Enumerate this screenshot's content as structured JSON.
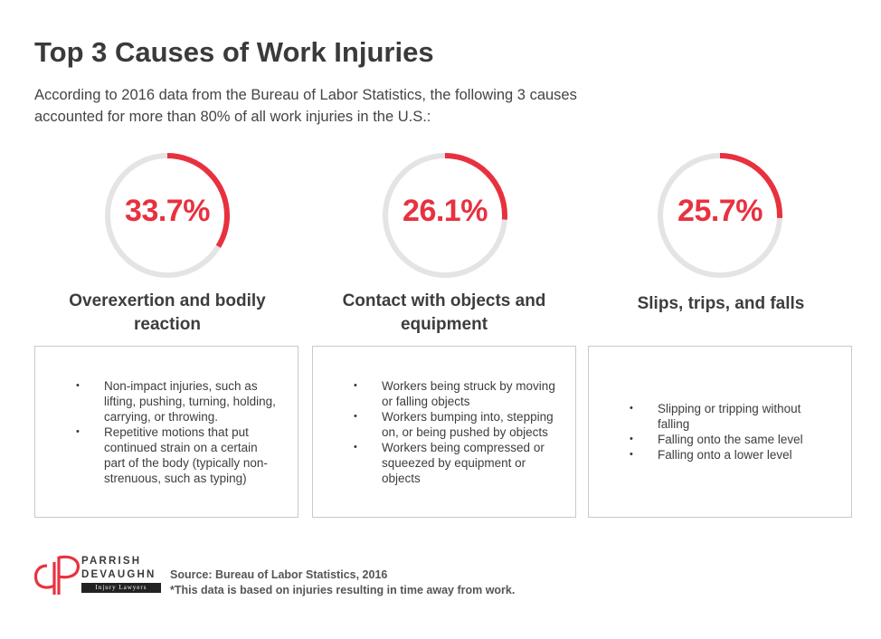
{
  "header": {
    "title": "Top 3 Causes of Work Injuries",
    "subtitle": "According to 2016 data from the Bureau of Labor Statistics, the following 3 causes accounted for more than 80% of all work injuries in the U.S.:"
  },
  "colors": {
    "accent": "#e8313f",
    "track": "#e6e3e4",
    "text": "#3d3d3d",
    "border": "#c9c9c9"
  },
  "chart_data": {
    "type": "pie",
    "unit": "%",
    "items": [
      {
        "label": "33.7%",
        "value": 33.7,
        "cause": "Overexertion and bodily reaction",
        "bullets": [
          "Non-impact injuries, such as lifting, pushing, turning, holding, carrying, or throwing.",
          "Repetitive motions that put continued strain on a certain part of the body (typically non-strenuous, such as typing)"
        ]
      },
      {
        "label": "26.1%",
        "value": 26.1,
        "cause": "Contact with objects and equipment",
        "bullets": [
          "Workers being struck by moving or falling objects",
          "Workers bumping into, stepping on, or being pushed by objects",
          "Workers being compressed or squeezed by equipment or objects"
        ]
      },
      {
        "label": "25.7%",
        "value": 25.7,
        "cause": "Slips, trips, and falls",
        "bullets": [
          "Slipping or tripping without falling",
          "Falling onto the same level",
          "Falling onto a lower level"
        ]
      }
    ]
  },
  "logo": {
    "line1": "PARRISH",
    "line2": "DEVAUGHN",
    "tagline": "Injury Lawyers",
    "icon": "dp-monogram-logo"
  },
  "footer": {
    "source": "Source: Bureau of Labor Statistics, 2016",
    "note": "*This data is based on injuries resulting in time away from work."
  }
}
